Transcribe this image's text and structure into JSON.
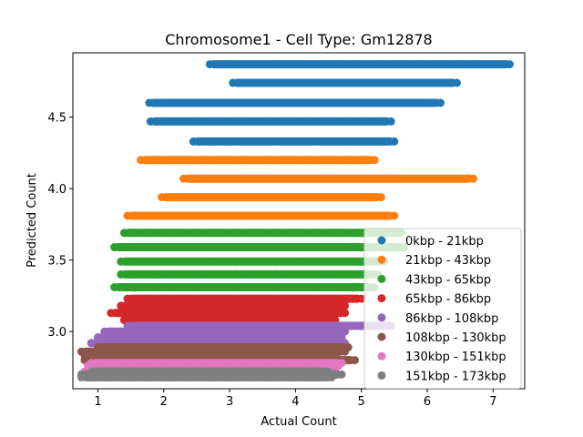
{
  "chart_data": {
    "type": "scatter",
    "title": "Chromosome1 - Cell Type: Gm12878",
    "xlabel": "Actual Count",
    "ylabel": "Predicted Count",
    "xlim": [
      0.62,
      7.48
    ],
    "ylim": [
      2.6,
      4.95
    ],
    "xticks": [
      1,
      2,
      3,
      4,
      5,
      6,
      7
    ],
    "yticks": [
      3.0,
      3.5,
      4.0,
      4.5
    ],
    "ytick_labels": [
      "3.0",
      "3.5",
      "4.0",
      "4.5"
    ],
    "legend_location": "lower right",
    "grid": false,
    "series": [
      {
        "name": "0kbp - 21kbp",
        "color": "#1f77b4",
        "bands": [
          {
            "y": 4.87,
            "x": [
              2.7,
              2.8,
              2.95,
              3.4,
              3.7,
              3.8,
              3.95,
              4.1,
              4.4,
              4.55,
              4.65,
              4.9,
              5.1,
              5.3,
              5.5,
              5.7,
              5.85,
              5.95,
              6.1,
              6.3,
              6.5,
              6.75,
              7.2,
              7.25
            ]
          },
          {
            "y": 4.74,
            "x": [
              3.05,
              3.3,
              3.45,
              3.7,
              3.85,
              4.0,
              4.2,
              4.4,
              4.6,
              4.8,
              5.0,
              5.2,
              5.4,
              5.6,
              5.8,
              5.9,
              6.0,
              6.45
            ]
          },
          {
            "y": 4.6,
            "x": [
              1.78,
              2.15,
              2.55,
              2.7,
              2.9,
              3.05,
              3.2,
              3.4,
              3.6,
              3.8,
              4.0,
              4.2,
              4.4,
              4.6,
              4.8,
              5.0,
              5.2,
              5.4,
              5.6,
              5.8,
              5.95,
              6.05,
              6.2
            ]
          },
          {
            "y": 4.47,
            "x": [
              1.8,
              1.97,
              2.45,
              2.75,
              2.9,
              3.05,
              3.2,
              3.4,
              3.6,
              3.8,
              4.0,
              4.2,
              4.4,
              4.6,
              4.8,
              5.0,
              5.25,
              5.45
            ]
          },
          {
            "y": 4.33,
            "x": [
              2.45,
              2.75,
              3.0,
              3.2,
              3.4,
              3.6,
              3.8,
              4.0,
              4.2,
              4.4,
              4.6,
              4.8,
              5.0,
              5.2,
              5.35,
              5.5
            ]
          }
        ]
      },
      {
        "name": "21kbp - 43kbp",
        "color": "#ff7f0e",
        "bands": [
          {
            "y": 4.2,
            "x": [
              1.65,
              1.85,
              2.1,
              2.2,
              2.4,
              2.6,
              2.8,
              3.0,
              3.2,
              3.4,
              3.6,
              3.8,
              4.0,
              4.2,
              4.4,
              4.6,
              4.8,
              5.0,
              5.2
            ]
          },
          {
            "y": 4.07,
            "x": [
              2.3,
              2.45,
              2.6,
              2.8,
              3.0,
              3.2,
              3.4,
              3.6,
              3.8,
              4.0,
              4.2,
              4.4,
              4.6,
              4.8,
              5.0,
              5.15,
              5.35,
              5.5,
              6.7
            ]
          },
          {
            "y": 3.94,
            "x": [
              1.97,
              2.2,
              2.35,
              2.5,
              2.7,
              2.9,
              3.1,
              3.3,
              3.5,
              3.7,
              3.9,
              4.1,
              4.3,
              4.5,
              4.7,
              4.9,
              5.1,
              5.2,
              5.3
            ]
          },
          {
            "y": 3.81,
            "x": [
              1.45,
              1.65,
              1.8,
              2.1,
              2.3,
              2.5,
              2.7,
              2.9,
              3.1,
              3.3,
              3.5,
              3.7,
              3.9,
              4.1,
              4.3,
              4.5,
              4.7,
              4.9,
              5.05,
              5.2,
              5.5
            ]
          }
        ]
      },
      {
        "name": "43kbp - 65kbp",
        "color": "#2ca02c",
        "bands": [
          {
            "y": 3.69,
            "x": [
              1.4,
              1.55,
              1.75,
              1.95,
              2.1,
              2.3,
              2.5,
              2.7,
              2.9,
              3.1,
              3.3,
              3.5,
              3.7,
              3.9,
              4.1,
              4.3,
              4.5,
              4.7,
              4.9,
              5.1,
              5.3,
              5.6
            ]
          },
          {
            "y": 3.59,
            "x": [
              1.25,
              1.4,
              1.55,
              1.75,
              1.95,
              2.15,
              2.35,
              2.55,
              2.75,
              2.95,
              3.15,
              3.35,
              3.55,
              3.75,
              3.95,
              4.15,
              4.35,
              4.55,
              4.75,
              4.95,
              5.15,
              5.35,
              5.55,
              5.65
            ]
          },
          {
            "y": 3.49,
            "x": [
              1.35,
              1.5,
              1.7,
              1.9,
              2.1,
              2.3,
              2.5,
              2.7,
              2.9,
              3.1,
              3.3,
              3.5,
              3.7,
              3.9,
              4.1,
              4.3,
              4.5,
              4.7,
              4.9,
              5.1,
              5.35
            ]
          },
          {
            "y": 3.4,
            "x": [
              1.35,
              1.5,
              1.7,
              1.9,
              2.1,
              2.3,
              2.5,
              2.7,
              2.9,
              3.1,
              3.3,
              3.5,
              3.7,
              3.9,
              4.1,
              4.3,
              4.5,
              4.7,
              4.9,
              5.1,
              5.25
            ]
          },
          {
            "y": 3.31,
            "x": [
              1.25,
              1.4,
              1.6,
              1.8,
              2.0,
              2.2,
              2.4,
              2.6,
              2.8,
              3.0,
              3.2,
              3.4,
              3.6,
              3.8,
              4.0,
              4.2,
              4.4,
              4.6,
              4.8,
              5.0,
              5.2
            ]
          }
        ]
      },
      {
        "name": "65kbp - 86kbp",
        "color": "#d62728",
        "bands": [
          {
            "y": 3.23,
            "x": [
              1.45,
              1.6,
              1.8,
              2.0,
              2.2,
              2.4,
              2.6,
              2.8,
              3.0,
              3.2,
              3.4,
              3.6,
              3.8,
              4.0,
              4.2,
              4.4,
              4.6,
              4.8,
              5.0
            ]
          },
          {
            "y": 3.18,
            "x": [
              1.35,
              1.55,
              1.75,
              1.95,
              2.15,
              2.35,
              2.55,
              2.75,
              2.95,
              3.15,
              3.35,
              3.55,
              3.75,
              3.95,
              4.15,
              4.35,
              4.55,
              4.75
            ]
          },
          {
            "y": 3.13,
            "x": [
              1.2,
              1.4,
              1.6,
              1.8,
              2.0,
              2.2,
              2.4,
              2.6,
              2.8,
              3.0,
              3.2,
              3.4,
              3.6,
              3.8,
              4.0,
              4.2,
              4.4,
              4.6,
              4.75
            ]
          },
          {
            "y": 3.08,
            "x": [
              1.4,
              1.6,
              1.8,
              2.0,
              2.2,
              2.4,
              2.6,
              2.8,
              3.0,
              3.2,
              3.4,
              3.6,
              3.8,
              4.0,
              4.2,
              4.4,
              4.6
            ]
          }
        ]
      },
      {
        "name": "86kbp - 108kbp",
        "color": "#9467bd",
        "bands": [
          {
            "y": 3.04,
            "x": [
              1.45,
              1.6,
              1.8,
              2.0,
              2.2,
              2.4,
              2.6,
              2.8,
              3.0,
              3.2,
              3.4,
              3.6,
              3.8,
              4.0,
              4.2,
              4.4,
              4.6,
              4.8,
              5.45
            ]
          },
          {
            "y": 3.0,
            "x": [
              1.1,
              1.35,
              1.55,
              1.75,
              1.95,
              2.15,
              2.35,
              2.55,
              2.75,
              2.95,
              3.15,
              3.35,
              3.55,
              3.75,
              3.95,
              4.15,
              4.35,
              4.55,
              4.75
            ]
          },
          {
            "y": 2.96,
            "x": [
              1.0,
              1.3,
              1.5,
              1.7,
              1.9,
              2.1,
              2.3,
              2.5,
              2.7,
              2.9,
              3.1,
              3.3,
              3.5,
              3.7,
              3.9,
              4.1,
              4.3,
              4.5,
              4.7
            ]
          },
          {
            "y": 2.92,
            "x": [
              0.9,
              1.15,
              1.35,
              1.55,
              1.75,
              1.95,
              2.15,
              2.35,
              2.55,
              2.75,
              2.95,
              3.15,
              3.35,
              3.55,
              3.75,
              3.95,
              4.15,
              4.35,
              4.55,
              4.75
            ]
          }
        ]
      },
      {
        "name": "108kbp - 130kbp",
        "color": "#8c564b",
        "bands": [
          {
            "y": 2.89,
            "x": [
              1.0,
              1.2,
              1.4,
              1.6,
              1.8,
              2.0,
              2.2,
              2.4,
              2.6,
              2.8,
              3.0,
              3.2,
              3.4,
              3.6,
              3.8,
              4.0,
              4.2,
              4.4,
              4.6,
              4.8
            ]
          },
          {
            "y": 2.86,
            "x": [
              0.75,
              0.95,
              1.15,
              1.35,
              1.55,
              1.75,
              1.95,
              2.15,
              2.35,
              2.55,
              2.75,
              2.95,
              3.15,
              3.35,
              3.55,
              3.75,
              3.95,
              4.15,
              4.35,
              4.55,
              4.75
            ]
          },
          {
            "y": 2.83,
            "x": [
              0.8,
              1.0,
              1.2,
              1.4,
              1.6,
              1.8,
              2.0,
              2.2,
              2.4,
              2.6,
              2.8,
              3.0,
              3.2,
              3.4,
              3.6,
              3.8,
              4.0,
              4.2,
              4.4,
              4.6
            ]
          },
          {
            "y": 2.8,
            "x": [
              0.8,
              1.05,
              1.25,
              1.45,
              1.65,
              1.85,
              2.05,
              2.25,
              2.45,
              2.65,
              2.85,
              3.05,
              3.25,
              3.45,
              3.65,
              3.85,
              4.05,
              4.25,
              4.45,
              4.65,
              4.9
            ]
          }
        ]
      },
      {
        "name": "130kbp - 151kbp",
        "color": "#e377c2",
        "bands": [
          {
            "y": 2.78,
            "x": [
              0.9,
              1.1,
              1.3,
              1.5,
              1.7,
              1.9,
              2.1,
              2.3,
              2.5,
              2.7,
              2.9,
              3.1,
              3.3,
              3.5,
              3.7,
              3.9,
              4.1,
              4.3,
              4.5,
              4.7
            ]
          },
          {
            "y": 2.76,
            "x": [
              0.85,
              1.05,
              1.25,
              1.45,
              1.65,
              1.85,
              2.05,
              2.25,
              2.45,
              2.65,
              2.85,
              3.05,
              3.25,
              3.45,
              3.65,
              3.85,
              4.05,
              4.25,
              4.45,
              4.65
            ]
          },
          {
            "y": 2.74,
            "x": [
              0.95,
              1.15,
              1.35,
              1.55,
              1.75,
              1.95,
              2.15,
              2.35,
              2.55,
              2.75,
              2.95,
              3.15,
              3.35,
              3.55,
              3.75,
              3.95,
              4.15,
              4.35,
              4.55
            ]
          },
          {
            "y": 2.72,
            "x": [
              0.8,
              1.0,
              1.2,
              1.4,
              1.6,
              1.8,
              2.0,
              2.2,
              2.4,
              2.6,
              2.8,
              3.0,
              3.2,
              3.4,
              3.6,
              3.8,
              4.0,
              4.2,
              4.4,
              4.6
            ]
          }
        ]
      },
      {
        "name": "151kbp - 173kbp",
        "color": "#7f7f7f",
        "bands": [
          {
            "y": 2.72,
            "x": [
              0.9,
              1.1,
              1.3,
              1.5,
              1.7,
              1.9,
              2.1,
              2.3,
              2.5,
              2.7,
              2.9,
              3.1,
              3.3,
              3.5,
              3.7,
              3.9,
              4.1,
              4.3,
              4.5
            ]
          },
          {
            "y": 2.7,
            "x": [
              0.75,
              0.95,
              1.15,
              1.35,
              1.55,
              1.75,
              1.95,
              2.15,
              2.35,
              2.55,
              2.75,
              2.95,
              3.15,
              3.35,
              3.55,
              3.75,
              3.95,
              4.15,
              4.35,
              4.55,
              4.7
            ]
          },
          {
            "y": 2.68,
            "x": [
              0.75,
              0.95,
              1.15,
              1.35,
              1.55,
              1.75,
              1.95,
              2.15,
              2.35,
              2.55,
              2.75,
              2.95,
              3.15,
              3.35,
              3.55,
              3.75,
              3.95,
              4.15,
              4.35,
              4.55
            ]
          }
        ]
      }
    ]
  }
}
